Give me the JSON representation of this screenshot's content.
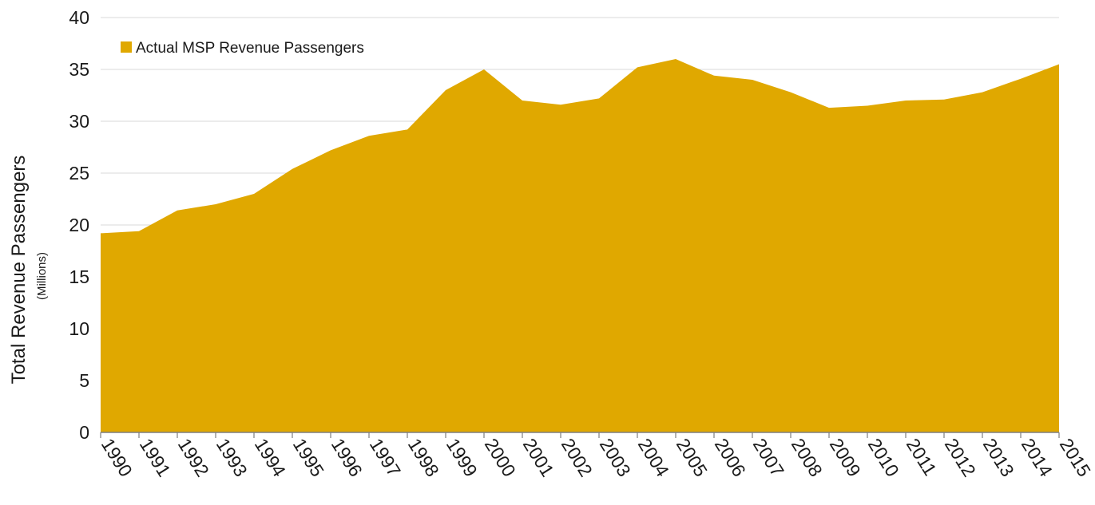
{
  "chart_data": {
    "type": "area",
    "ylabel": "Total Revenue Passengers",
    "ylabel_unit": "(Millions)",
    "x": [
      "1990",
      "1991",
      "1992",
      "1993",
      "1994",
      "1995",
      "1996",
      "1997",
      "1998",
      "1999",
      "2000",
      "2001",
      "2002",
      "2003",
      "2004",
      "2005",
      "2006",
      "2007",
      "2008",
      "2009",
      "2010",
      "2011",
      "2012",
      "2013",
      "2014",
      "2015"
    ],
    "series": [
      {
        "name": "Actual MSP Revenue Passengers",
        "color": "#E0A800",
        "values": [
          19.2,
          19.4,
          21.4,
          22.0,
          23.0,
          25.4,
          27.2,
          28.6,
          29.2,
          33.0,
          35.0,
          32.0,
          31.6,
          32.2,
          35.2,
          36.0,
          34.4,
          34.0,
          32.8,
          31.3,
          31.5,
          32.0,
          32.1,
          32.8,
          34.1,
          35.5
        ]
      }
    ],
    "ylim": [
      0,
      40
    ],
    "yticks": [
      "0",
      "5",
      "10",
      "15",
      "20",
      "25",
      "30",
      "35",
      "40"
    ],
    "grid": "horizontal",
    "legend_position": "top-left"
  }
}
